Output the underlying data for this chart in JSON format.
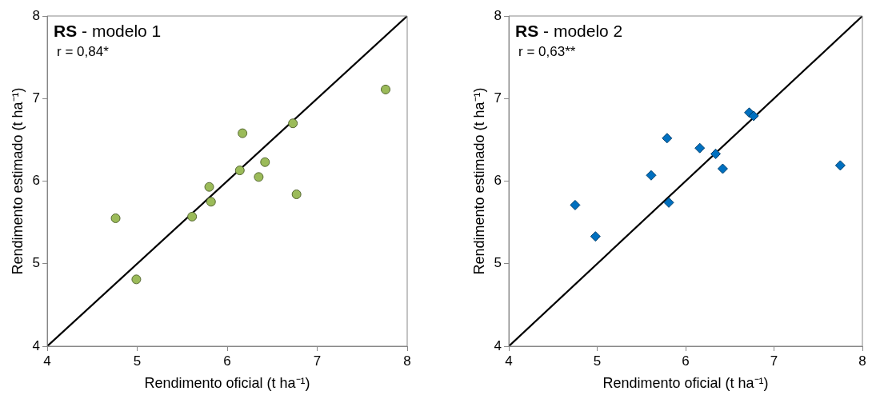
{
  "chart_data": [
    {
      "type": "scatter",
      "title": "RS - modelo 1",
      "annotations": [
        "r = 0,84*"
      ],
      "xlabel": "Rendimento oficial (t ha⁻¹)",
      "ylabel": "Rendimento estimado (t ha⁻¹)",
      "xlim": [
        4,
        8
      ],
      "ylim": [
        4,
        8
      ],
      "xticks": [
        4,
        5,
        6,
        7,
        8
      ],
      "yticks": [
        4,
        5,
        6,
        7,
        8
      ],
      "grid": false,
      "legend": false,
      "series": [
        {
          "type": "scatter",
          "marker": "circle",
          "color": "#9bbb59",
          "x": [
            4.76,
            4.99,
            5.61,
            5.8,
            5.82,
            6.14,
            6.17,
            6.35,
            6.42,
            6.73,
            6.77,
            7.76
          ],
          "values": [
            5.55,
            4.81,
            5.57,
            5.93,
            5.75,
            6.13,
            6.58,
            6.05,
            6.23,
            6.7,
            5.84,
            7.11
          ]
        },
        {
          "type": "line",
          "color": "#000000",
          "x": [
            4,
            8
          ],
          "values": [
            4,
            8
          ]
        }
      ]
    },
    {
      "type": "scatter",
      "title": "RS - modelo 2",
      "annotations": [
        "r = 0,63**"
      ],
      "xlabel": "Rendimento oficial (t ha⁻¹)",
      "ylabel": "Rendimento estimado (t ha⁻¹)",
      "xlim": [
        4,
        8
      ],
      "ylim": [
        4,
        8
      ],
      "xticks": [
        4,
        5,
        6,
        7,
        8
      ],
      "yticks": [
        4,
        5,
        6,
        7,
        8
      ],
      "grid": false,
      "legend": false,
      "series": [
        {
          "type": "scatter",
          "marker": "diamond",
          "color": "#0070c0",
          "x": [
            4.75,
            4.98,
            5.61,
            5.79,
            5.81,
            6.16,
            6.34,
            6.42,
            6.72,
            6.77,
            7.75
          ],
          "values": [
            5.71,
            5.33,
            6.07,
            6.52,
            5.74,
            6.4,
            6.33,
            6.15,
            6.83,
            6.79,
            6.19
          ]
        },
        {
          "type": "line",
          "color": "#000000",
          "x": [
            4,
            8
          ],
          "values": [
            4,
            8
          ]
        }
      ]
    }
  ]
}
